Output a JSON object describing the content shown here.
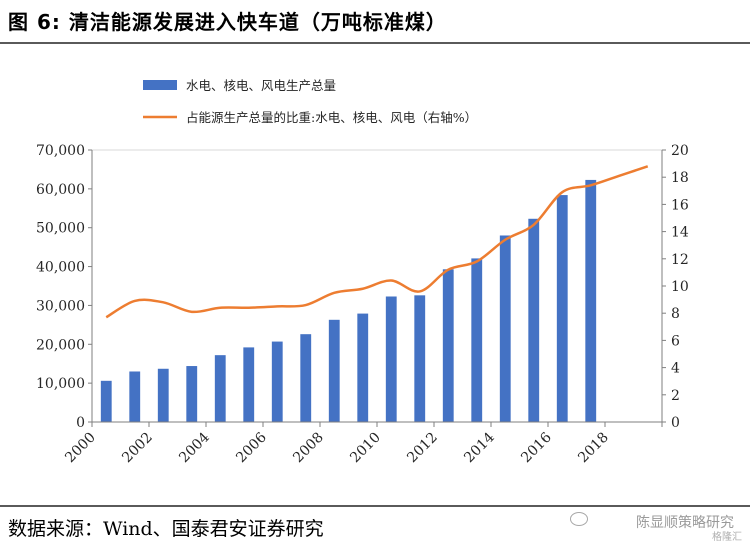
{
  "figure": {
    "title": "图 6:  清洁能源发展进入快车道（万吨标准煤）",
    "source": "数据来源：Wind、国泰君安证券研究",
    "watermark": "陈显顺策略研究",
    "watermark_sub": "格隆汇"
  },
  "colors": {
    "bar": "#4472c4",
    "line": "#ed7d31",
    "axis": "#7f7f7f",
    "text": "#262626"
  },
  "chart_data": {
    "type": "bar",
    "title": "",
    "x": [
      2000,
      2001,
      2002,
      2003,
      2004,
      2005,
      2006,
      2007,
      2008,
      2009,
      2010,
      2011,
      2012,
      2013,
      2014,
      2015,
      2016,
      2017,
      2018,
      2019
    ],
    "x_tick_labels": [
      "2000",
      "2002",
      "2004",
      "2006",
      "2008",
      "2010",
      "2012",
      "2014",
      "2016",
      "2018"
    ],
    "series": [
      {
        "name": "水电、核电、风电生产总量",
        "type": "bar",
        "axis": "left",
        "values": [
          10600,
          13000,
          13700,
          14400,
          17200,
          19200,
          20700,
          22600,
          26300,
          27900,
          32300,
          32600,
          39300,
          42100,
          48000,
          52300,
          58400,
          62300,
          null,
          null
        ]
      },
      {
        "name": "占能源生产总量的比重:水电、核电、风电（右轴%）",
        "type": "line",
        "axis": "right",
        "values": [
          7.7,
          8.9,
          8.8,
          8.1,
          8.4,
          8.4,
          8.5,
          8.6,
          9.5,
          9.8,
          10.4,
          9.6,
          11.2,
          11.8,
          13.4,
          14.5,
          16.9,
          17.4,
          18.1,
          18.8
        ]
      }
    ],
    "y_left": {
      "lim": [
        0,
        70000
      ],
      "ticks": [
        "0",
        "10,000",
        "20,000",
        "30,000",
        "40,000",
        "50,000",
        "60,000",
        "70,000"
      ]
    },
    "y_right": {
      "lim": [
        0,
        20
      ],
      "ticks": [
        "0",
        "2",
        "4",
        "6",
        "8",
        "10",
        "12",
        "14",
        "16",
        "18",
        "20"
      ]
    },
    "xlabel": "",
    "ylabel": "",
    "grid": false,
    "legend_position": "top"
  }
}
